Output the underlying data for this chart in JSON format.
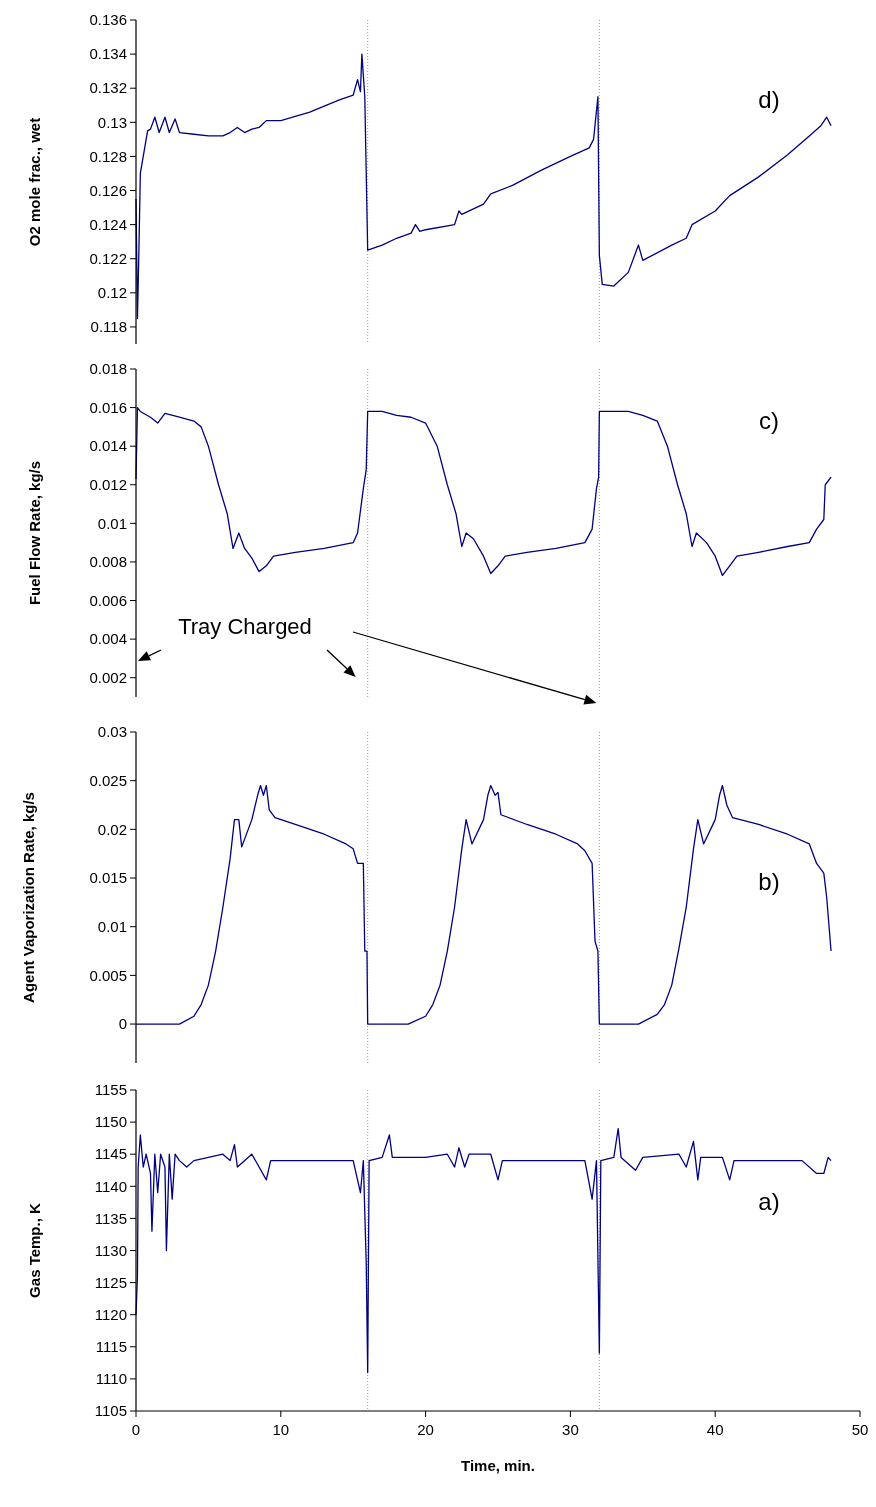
{
  "chart_data": [
    {
      "type": "line",
      "ylabel": "O2 mole frac., wet",
      "annotations": [
        "d)"
      ],
      "tick_labels": "y",
      "xlim": [
        0,
        50
      ],
      "ylim": [
        0.117,
        0.136
      ],
      "yticks": [
        0.118,
        0.12,
        0.122,
        0.124,
        0.126,
        0.128,
        0.13,
        0.132,
        0.134,
        0.136
      ],
      "ref_lines": [
        {
          "axis": "x",
          "value": 16,
          "color": "#999999",
          "line_style": "dotted"
        },
        {
          "axis": "x",
          "value": 32,
          "color": "#999999",
          "line_style": "dotted"
        }
      ],
      "series": [
        {
          "color": "#000080",
          "x": [
            0,
            0.1,
            0.2,
            0.3,
            0.5,
            0.8,
            1,
            1.3,
            1.6,
            2,
            2.3,
            2.7,
            3,
            4,
            5,
            6,
            6.5,
            7,
            7.5,
            8,
            8.5,
            9,
            10,
            12,
            14,
            15,
            15.3,
            15.5,
            15.6,
            15.8,
            16,
            17,
            18,
            19,
            19.3,
            19.6,
            20,
            22,
            22.3,
            22.5,
            24,
            24.5,
            26,
            28,
            30,
            31.3,
            31.6,
            31.9,
            32,
            32.2,
            33,
            34,
            34.7,
            35,
            37,
            38,
            38.4,
            40,
            41,
            43,
            45,
            46.5,
            47.3,
            47.7,
            48
          ],
          "values": [
            0.1255,
            0.1185,
            0.1225,
            0.127,
            0.128,
            0.1295,
            0.1296,
            0.1303,
            0.1294,
            0.1303,
            0.1294,
            0.1302,
            0.1294,
            0.1293,
            0.1292,
            0.1292,
            0.1294,
            0.1297,
            0.1294,
            0.1296,
            0.1297,
            0.1301,
            0.1301,
            0.1306,
            0.1313,
            0.1316,
            0.1325,
            0.1318,
            0.134,
            0.1315,
            0.1225,
            0.1228,
            0.1232,
            0.1235,
            0.124,
            0.1236,
            0.1237,
            0.124,
            0.1248,
            0.1246,
            0.1252,
            0.1258,
            0.1263,
            0.1272,
            0.128,
            0.1285,
            0.129,
            0.1315,
            0.1222,
            0.1205,
            0.1204,
            0.1212,
            0.1228,
            0.1219,
            0.1228,
            0.1232,
            0.124,
            0.1248,
            0.1257,
            0.1268,
            0.1281,
            0.1292,
            0.1298,
            0.1303,
            0.1298
          ]
        }
      ]
    },
    {
      "type": "line",
      "ylabel": "Fuel Flow Rate, kg/s",
      "annotations": [
        "c)",
        "Tray Charged"
      ],
      "tick_labels": "y",
      "xlim": [
        0,
        50
      ],
      "ylim": [
        0.001,
        0.018
      ],
      "yticks": [
        0.002,
        0.004,
        0.006,
        0.008,
        0.01,
        0.012,
        0.014,
        0.016,
        0.018
      ],
      "ref_lines": [
        {
          "axis": "x",
          "value": 16,
          "color": "#999999",
          "line_style": "dotted"
        },
        {
          "axis": "x",
          "value": 32,
          "color": "#999999",
          "line_style": "dotted"
        }
      ],
      "series": [
        {
          "color": "#000080",
          "x": [
            0,
            0.1,
            0.3,
            1,
            1.5,
            2,
            3,
            4,
            4.5,
            5,
            5.7,
            6.3,
            6.7,
            7.1,
            7.5,
            8,
            8.5,
            9,
            9.5,
            11,
            13,
            15,
            15.3,
            15.7,
            15.9,
            16,
            17,
            18,
            19,
            20,
            20.8,
            21.5,
            22.1,
            22.5,
            22.8,
            23.3,
            24,
            24.5,
            25,
            25.5,
            27,
            29,
            31,
            31.5,
            31.8,
            31.95,
            32,
            34,
            35,
            36,
            36.7,
            37.4,
            38,
            38.4,
            38.7,
            39.4,
            40,
            40.5,
            41,
            41.5,
            43,
            45,
            46.5,
            47,
            47.5,
            47.6,
            48
          ],
          "values": [
            0.0123,
            0.016,
            0.0158,
            0.0155,
            0.0152,
            0.0157,
            0.0155,
            0.0153,
            0.015,
            0.014,
            0.012,
            0.0105,
            0.0087,
            0.0095,
            0.0087,
            0.0082,
            0.0075,
            0.0078,
            0.0083,
            0.0085,
            0.0087,
            0.009,
            0.0095,
            0.0118,
            0.0128,
            0.0158,
            0.0158,
            0.0156,
            0.0155,
            0.0152,
            0.014,
            0.012,
            0.0105,
            0.0088,
            0.0095,
            0.0092,
            0.0083,
            0.0074,
            0.0078,
            0.0083,
            0.0085,
            0.0087,
            0.009,
            0.0097,
            0.0118,
            0.0124,
            0.0158,
            0.0158,
            0.0156,
            0.0153,
            0.014,
            0.012,
            0.0105,
            0.0088,
            0.0095,
            0.009,
            0.0083,
            0.0073,
            0.0078,
            0.0083,
            0.0085,
            0.0088,
            0.009,
            0.0097,
            0.0102,
            0.012,
            0.0124
          ]
        }
      ]
    },
    {
      "type": "line",
      "ylabel": "Agent Vaporization Rate, kg/s",
      "annotations": [
        "b)"
      ],
      "tick_labels": "y",
      "xlim": [
        0,
        50
      ],
      "ylim": [
        -0.004,
        0.03
      ],
      "yticks": [
        0,
        0.005,
        0.01,
        0.015,
        0.02,
        0.025,
        0.03
      ],
      "ref_lines": [
        {
          "axis": "x",
          "value": 16,
          "color": "#999999",
          "line_style": "dotted"
        },
        {
          "axis": "x",
          "value": 32,
          "color": "#999999",
          "line_style": "dotted"
        }
      ],
      "series": [
        {
          "color": "#000080",
          "x": [
            0,
            3,
            4,
            4.5,
            5,
            5.5,
            6,
            6.5,
            6.8,
            7.1,
            7.3,
            8,
            8.4,
            8.6,
            8.8,
            9,
            9.2,
            9.6,
            11,
            13,
            14.5,
            15,
            15.3,
            15.7,
            15.8,
            15.95,
            16,
            18.8,
            20,
            20.5,
            21,
            21.5,
            22,
            22.5,
            22.8,
            23.2,
            24,
            24.3,
            24.5,
            24.8,
            25,
            25.2,
            27,
            29,
            30.5,
            31,
            31.5,
            31.7,
            31.9,
            32,
            34.7,
            36,
            36.5,
            37,
            37.5,
            38,
            38.5,
            38.8,
            39.2,
            40,
            40.3,
            40.5,
            40.8,
            41.2,
            43,
            45,
            46.5,
            47,
            47.5,
            47.7,
            48
          ],
          "values": [
            0,
            0,
            0.0008,
            0.002,
            0.004,
            0.0075,
            0.012,
            0.017,
            0.021,
            0.021,
            0.0182,
            0.021,
            0.0235,
            0.0245,
            0.0235,
            0.0245,
            0.022,
            0.0212,
            0.0205,
            0.0195,
            0.0185,
            0.018,
            0.0165,
            0.0165,
            0.0075,
            0.0075,
            0,
            0,
            0.0008,
            0.002,
            0.004,
            0.0075,
            0.012,
            0.018,
            0.021,
            0.0185,
            0.021,
            0.0235,
            0.0245,
            0.0235,
            0.0238,
            0.0215,
            0.0205,
            0.0195,
            0.0185,
            0.0178,
            0.0165,
            0.0085,
            0.0075,
            0,
            0,
            0.001,
            0.002,
            0.004,
            0.0078,
            0.012,
            0.018,
            0.021,
            0.0185,
            0.021,
            0.0235,
            0.0245,
            0.0225,
            0.0212,
            0.0205,
            0.0195,
            0.0185,
            0.0165,
            0.0155,
            0.013,
            0.0075
          ]
        }
      ]
    },
    {
      "type": "line",
      "ylabel": "Gas Temp., K",
      "xlabel": "Time, min.",
      "annotations": [
        "a)"
      ],
      "xlim": [
        0,
        50
      ],
      "xticks": [
        0,
        10,
        20,
        30,
        40,
        50
      ],
      "ylim": [
        1105,
        1155
      ],
      "yticks": [
        1105,
        1110,
        1115,
        1120,
        1125,
        1130,
        1135,
        1140,
        1145,
        1150,
        1155
      ],
      "ref_lines": [
        {
          "axis": "x",
          "value": 16,
          "color": "#999999",
          "line_style": "dotted"
        },
        {
          "axis": "x",
          "value": 32,
          "color": "#999999",
          "line_style": "dotted"
        }
      ],
      "series": [
        {
          "color": "#000080",
          "x": [
            0,
            0.1,
            0.15,
            0.3,
            0.5,
            0.7,
            1,
            1.1,
            1.3,
            1.5,
            1.7,
            2,
            2.1,
            2.3,
            2.5,
            2.7,
            3,
            3.5,
            4,
            5,
            6,
            6.5,
            6.8,
            7,
            8,
            8.5,
            9,
            9.3,
            10,
            15,
            15.5,
            15.7,
            15.9,
            16,
            16.1,
            17,
            17.5,
            17.7,
            20,
            21.5,
            22,
            22.3,
            22.7,
            23,
            24.5,
            25,
            25.3,
            31,
            31.5,
            31.8,
            32,
            32.1,
            33,
            33.3,
            33.5,
            34.5,
            35,
            37.5,
            38,
            38.5,
            38.8,
            39,
            40.5,
            41,
            41.3,
            46,
            47,
            47.5,
            47.8,
            48
          ],
          "values": [
            1120,
            1126,
            1143,
            1148,
            1143,
            1145,
            1142,
            1133,
            1145,
            1139,
            1145,
            1143,
            1130,
            1145,
            1138,
            1145,
            1144,
            1143,
            1144,
            1144.5,
            1145,
            1144,
            1146.5,
            1143,
            1145,
            1143,
            1141,
            1144,
            1144,
            1144,
            1139,
            1144,
            1128,
            1111,
            1144,
            1144.5,
            1148,
            1144.5,
            1144.5,
            1145,
            1143,
            1146,
            1143,
            1145,
            1145,
            1141,
            1144,
            1144,
            1138,
            1144,
            1114,
            1144,
            1144.5,
            1149,
            1144.5,
            1142.5,
            1144.5,
            1145,
            1143,
            1147,
            1141,
            1144.5,
            1144.5,
            1141,
            1144,
            1144,
            1142,
            1142,
            1144.5,
            1144
          ]
        }
      ]
    }
  ]
}
